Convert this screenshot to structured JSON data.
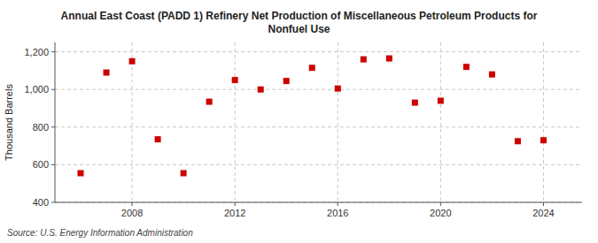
{
  "chart_data": {
    "type": "scatter",
    "title": "Annual East Coast (PADD 1) Refinery Net Production of Miscellaneous Petroleum Products for\nNonfuel Use",
    "ylabel": "Thousand Barrels",
    "source": "Source: U.S. Energy Information Administration",
    "x": [
      2006,
      2007,
      2008,
      2009,
      2010,
      2011,
      2012,
      2013,
      2014,
      2015,
      2016,
      2017,
      2018,
      2019,
      2020,
      2021,
      2022,
      2023,
      2024
    ],
    "values": [
      555,
      1090,
      1150,
      735,
      555,
      935,
      1050,
      1000,
      1045,
      1115,
      1005,
      1160,
      1165,
      930,
      940,
      1120,
      1080,
      725,
      730
    ],
    "color": "#cc0000",
    "marker": "square",
    "xlim": [
      2005.0,
      2025.5
    ],
    "ylim": [
      400,
      1250
    ],
    "xticks": [
      2008,
      2012,
      2016,
      2020,
      2024
    ],
    "yticks": [
      400,
      600,
      800,
      {
        "value": 1000,
        "label": "1,000"
      },
      {
        "value": 1200,
        "label": "1,200"
      }
    ],
    "grid": true
  }
}
